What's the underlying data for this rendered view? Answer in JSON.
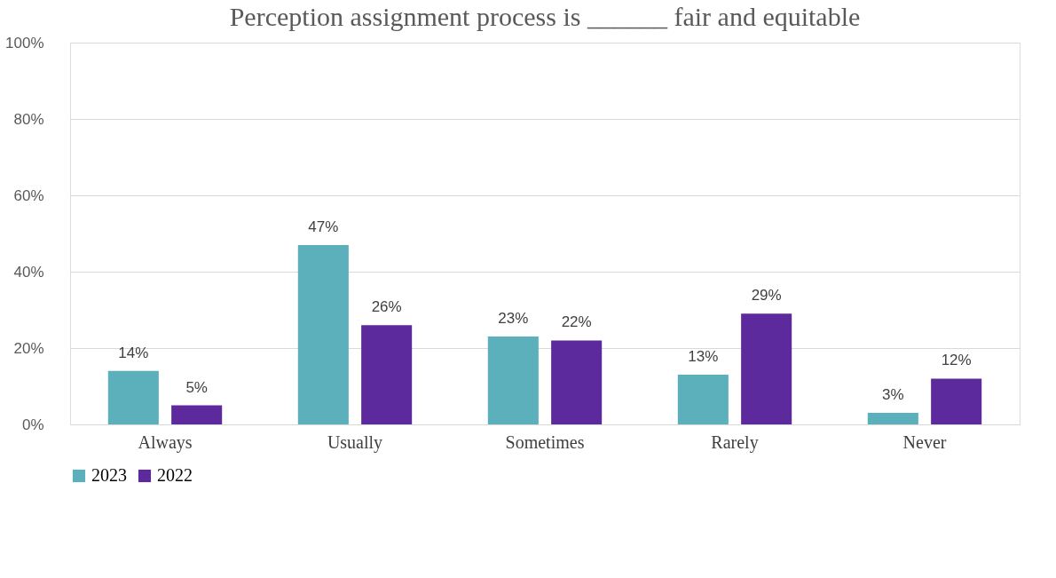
{
  "chart_data": {
    "type": "bar",
    "title": "Perception assignment process is ______ fair and equitable",
    "categories": [
      "Always",
      "Usually",
      "Sometimes",
      "Rarely",
      "Never"
    ],
    "series": [
      {
        "name": "2023",
        "color": "#5bb0bb",
        "values": [
          14,
          47,
          23,
          13,
          3
        ],
        "value_labels": [
          "14%",
          "47%",
          "23%",
          "13%",
          "3%"
        ]
      },
      {
        "name": "2022",
        "color": "#5c2a9d",
        "values": [
          5,
          26,
          22,
          29,
          12
        ],
        "value_labels": [
          "5%",
          "26%",
          "22%",
          "29%",
          "12%"
        ]
      }
    ],
    "ylim": [
      0,
      100
    ],
    "yticks": [
      {
        "value": 0,
        "label": "0%"
      },
      {
        "value": 20,
        "label": "20%"
      },
      {
        "value": 40,
        "label": "40%"
      },
      {
        "value": 60,
        "label": "60%"
      },
      {
        "value": 80,
        "label": "80%"
      },
      {
        "value": 100,
        "label": "100%"
      }
    ],
    "grid": "y",
    "legend": "bottom"
  }
}
